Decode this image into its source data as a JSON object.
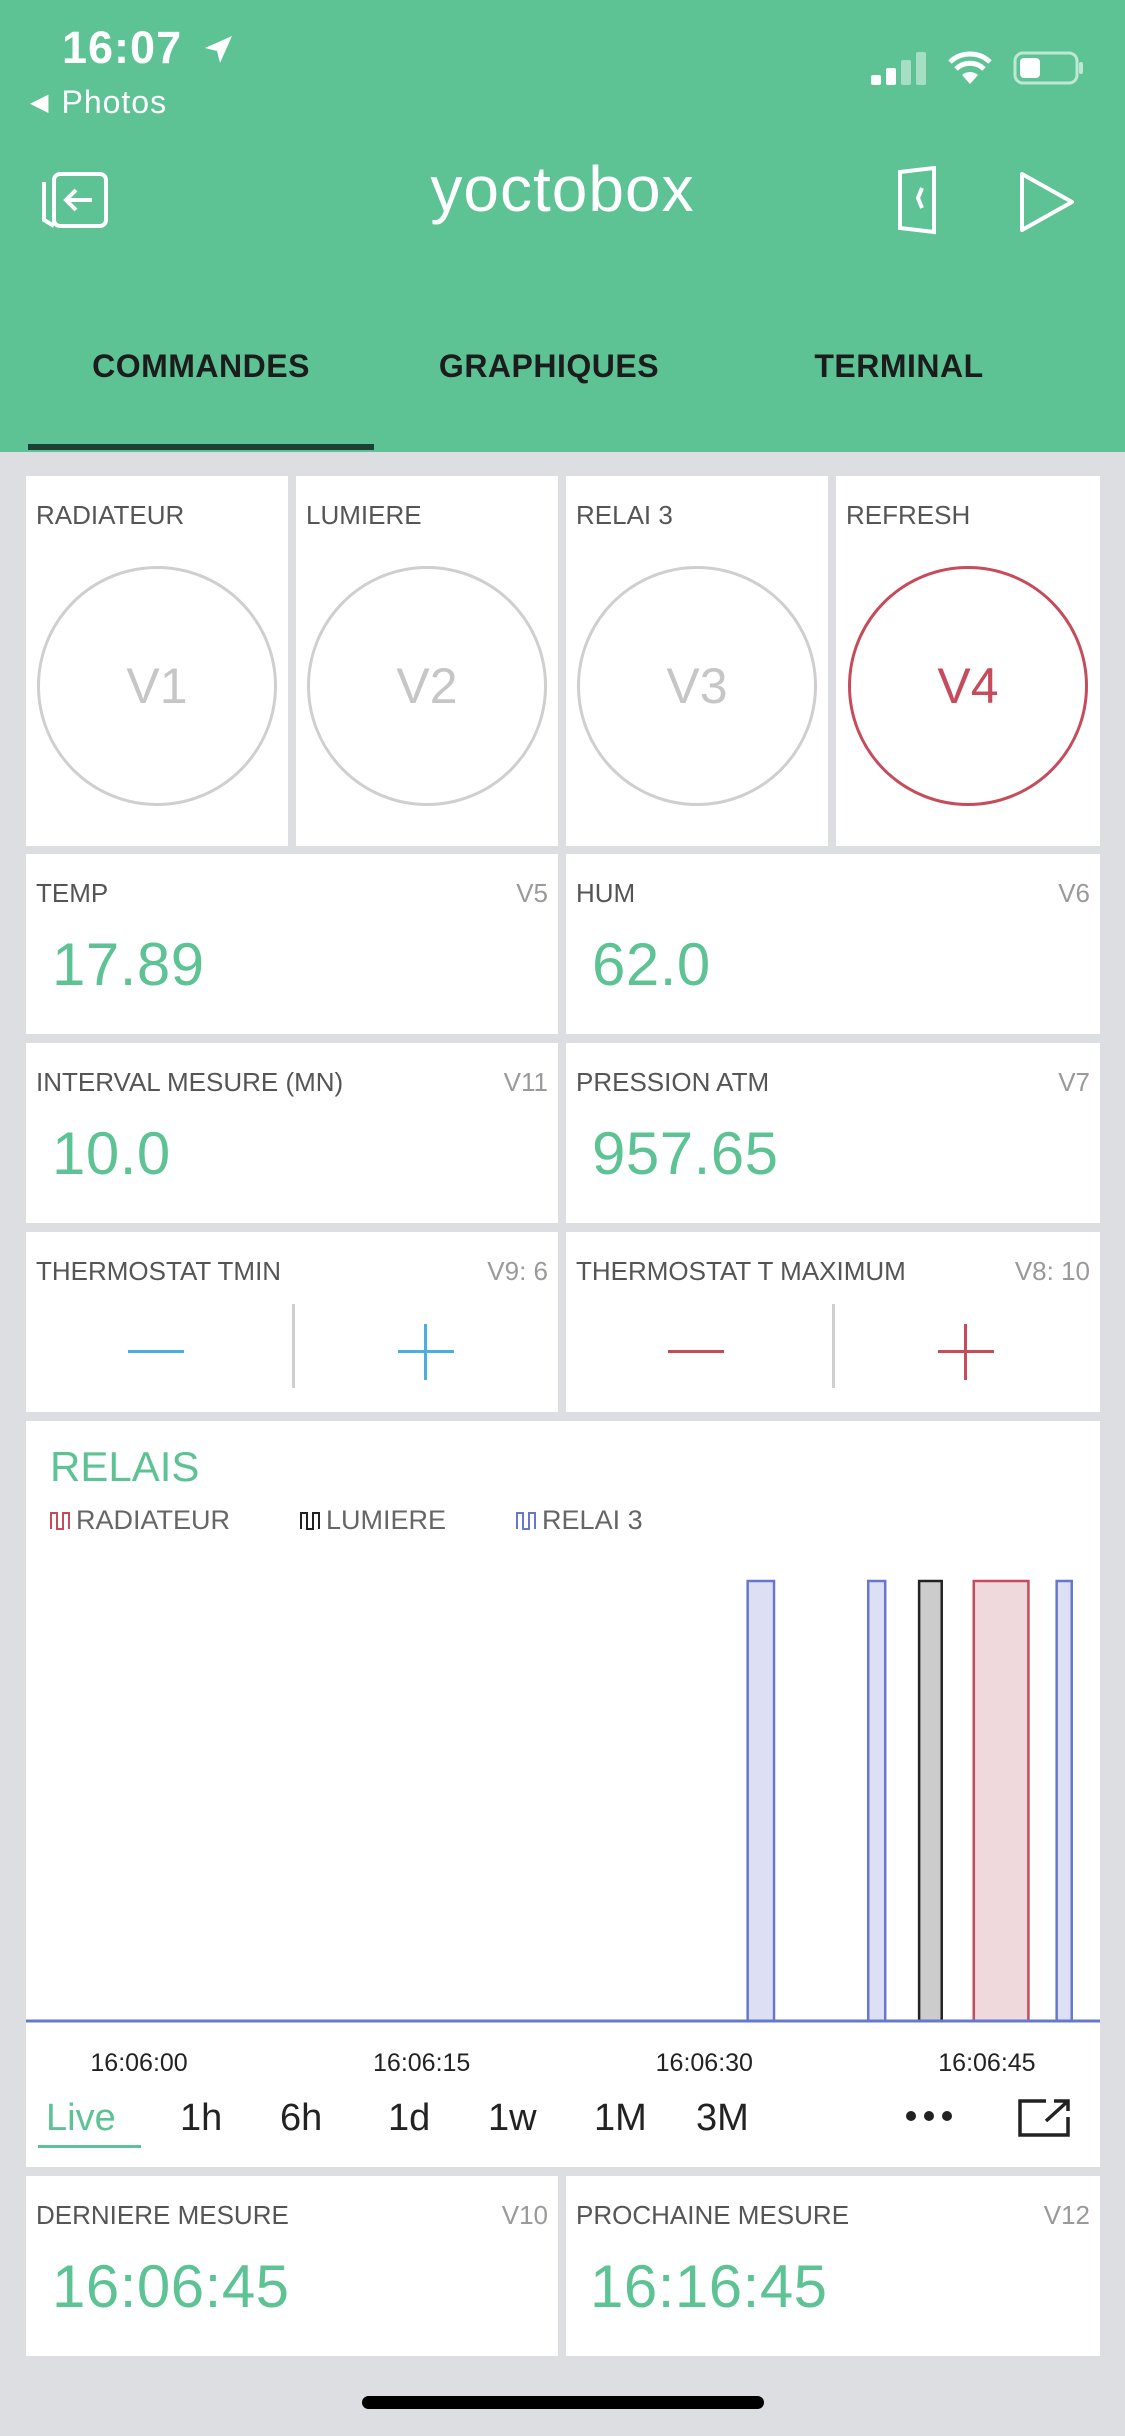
{
  "status_bar": {
    "time": "16:07",
    "back_label": "Photos"
  },
  "header": {
    "title": "yoctobox"
  },
  "tabs": [
    {
      "label": "COMMANDES",
      "active": true
    },
    {
      "label": "GRAPHIQUES",
      "active": false
    },
    {
      "label": "TERMINAL",
      "active": false
    }
  ],
  "buttons": [
    {
      "label": "RADIATEUR",
      "pin": "V1",
      "active": false
    },
    {
      "label": "LUMIERE",
      "pin": "V2",
      "active": false
    },
    {
      "label": "RELAI 3",
      "pin": "V3",
      "active": false
    },
    {
      "label": "REFRESH",
      "pin": "V4",
      "active": true
    }
  ],
  "displays": {
    "temp": {
      "label": "TEMP",
      "pin": "V5",
      "value": "17.89"
    },
    "hum": {
      "label": "HUM",
      "pin": "V6",
      "value": "62.0"
    },
    "interval": {
      "label": "INTERVAL MESURE (MN)",
      "pin": "V11",
      "value": "10.0"
    },
    "pression": {
      "label": "PRESSION ATM",
      "pin": "V7",
      "value": "957.65"
    },
    "derniere": {
      "label": "DERNIERE MESURE",
      "pin": "V10",
      "value": "16:06:45"
    },
    "prochaine": {
      "label": "PROCHAINE MESURE",
      "pin": "V12",
      "value": "16:16:45"
    }
  },
  "steppers": {
    "tmin": {
      "label": "THERMOSTAT TMIN",
      "pin": "V9: 6",
      "color": "#4aafe0"
    },
    "tmax": {
      "label": "THERMOSTAT T MAXIMUM",
      "pin": "V8: 10",
      "color": "#c64c5c"
    }
  },
  "chart": {
    "title": "RELAIS",
    "range_options": [
      "Live",
      "1h",
      "6h",
      "1d",
      "1w",
      "1M",
      "3M"
    ],
    "selected_range": "Live"
  },
  "chart_data": {
    "type": "area",
    "title": "RELAIS",
    "x_ticks": [
      "16:06:00",
      "16:06:15",
      "16:06:30",
      "16:06:45"
    ],
    "xlim_seconds_from_tick0": [
      -6,
      51
    ],
    "ylim": [
      0,
      1
    ],
    "series": [
      {
        "name": "RADIATEUR",
        "color": "#c64c5c",
        "fill": "#efd9dc",
        "on_intervals_seconds": [
          [
            44.3,
            47.2
          ]
        ]
      },
      {
        "name": "LUMIERE",
        "color": "#222222",
        "fill": "#cccccc",
        "on_intervals_seconds": [
          [
            41.4,
            42.6
          ]
        ]
      },
      {
        "name": "RELAI 3",
        "color": "#6678cc",
        "fill": "#dde0f4",
        "on_intervals_seconds": [
          [
            32.3,
            33.7
          ],
          [
            38.7,
            39.6
          ],
          [
            48.7,
            49.5
          ]
        ]
      }
    ]
  }
}
